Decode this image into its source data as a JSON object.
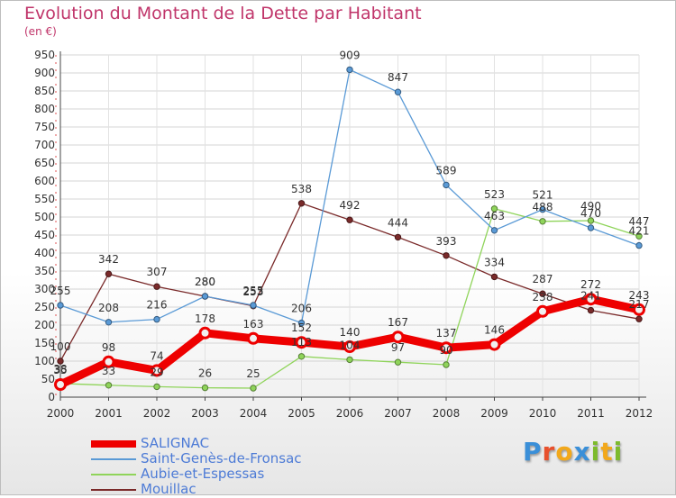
{
  "header": {
    "title": "Evolution du Montant de la Dette par Habitant",
    "unit": "(en €)"
  },
  "brand": {
    "letters": [
      "P",
      "r",
      "o",
      "x",
      "i",
      "t",
      "i"
    ],
    "colors": [
      "#3a8fd8",
      "#e8502c",
      "#f2a81b",
      "#3a8fd8",
      "#7dbb2c",
      "#f2a81b",
      "#7dbb2c"
    ]
  },
  "chart_data": {
    "type": "line",
    "title": "Evolution du Montant de la Dette par Habitant",
    "ylabel": "(en €)",
    "xlabel": "",
    "x": [
      "2000",
      "2001",
      "2002",
      "2003",
      "2004",
      "2005",
      "2006",
      "2007",
      "2008",
      "2009",
      "2010",
      "2011",
      "2012"
    ],
    "ylim": [
      0,
      950
    ],
    "yticks": [
      0,
      50,
      100,
      150,
      200,
      250,
      300,
      350,
      400,
      450,
      500,
      550,
      600,
      650,
      700,
      750,
      800,
      850,
      900,
      950
    ],
    "grid": true,
    "legend_position": "bottom-left",
    "series": [
      {
        "name": "Mouillac",
        "color": "#7a2a2a",
        "values": [
          100,
          342,
          307,
          280,
          253,
          538,
          492,
          444,
          393,
          334,
          287,
          241,
          217
        ]
      },
      {
        "name": "Aubie-et-Espessas",
        "color": "#8fd45a",
        "values": [
          38,
          33,
          29,
          26,
          25,
          113,
          104,
          97,
          90,
          523,
          488,
          490,
          447
        ]
      },
      {
        "name": "Saint-Genès-de-Fronsac",
        "color": "#5a9ad6",
        "values": [
          255,
          208,
          216,
          280,
          255,
          206,
          909,
          847,
          589,
          463,
          521,
          470,
          421
        ]
      },
      {
        "name": "SALIGNAC",
        "color": "#ee0000",
        "values": [
          35,
          98,
          74,
          178,
          163,
          152,
          140,
          167,
          137,
          146,
          238,
          272,
          243
        ]
      }
    ]
  },
  "legend": {
    "items": [
      {
        "label": "SALIGNAC",
        "color": "#ee0000"
      },
      {
        "label": "Saint-Genès-de-Fronsac",
        "color": "#5a9ad6"
      },
      {
        "label": "Aubie-et-Espessas",
        "color": "#8fd45a"
      },
      {
        "label": "Mouillac",
        "color": "#7a2a2a"
      }
    ]
  }
}
